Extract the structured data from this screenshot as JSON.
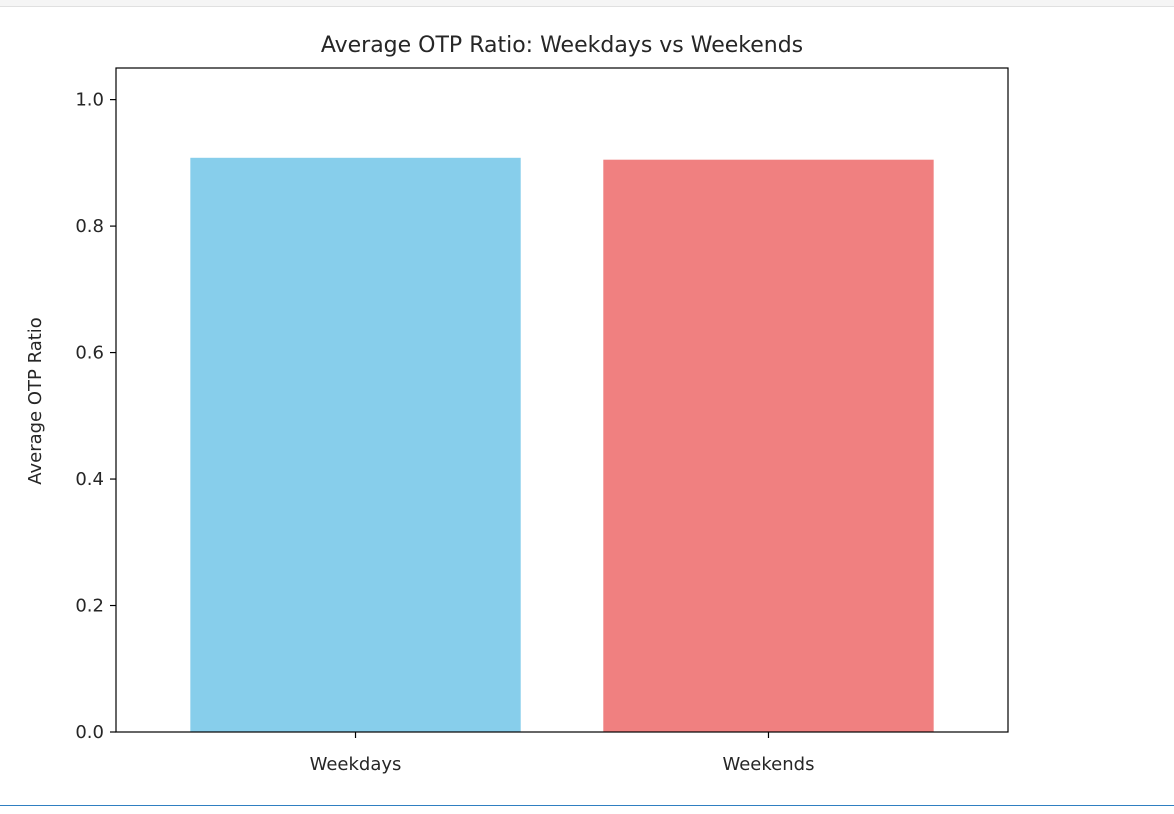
{
  "chart_data": {
    "type": "bar",
    "title": "Average OTP Ratio: Weekdays vs Weekends",
    "xlabel": "",
    "ylabel": "Average OTP Ratio",
    "categories": [
      "Weekdays",
      "Weekends"
    ],
    "values": [
      0.908,
      0.905
    ],
    "colors": [
      "#87CEEB",
      "#F08080"
    ],
    "ylim": [
      0,
      1.05
    ],
    "yticks": [
      0.0,
      0.2,
      0.4,
      0.6,
      0.8,
      1.0
    ],
    "ytick_labels": [
      "0.0",
      "0.2",
      "0.4",
      "0.6",
      "0.8",
      "1.0"
    ],
    "grid": false,
    "legend": "none"
  }
}
